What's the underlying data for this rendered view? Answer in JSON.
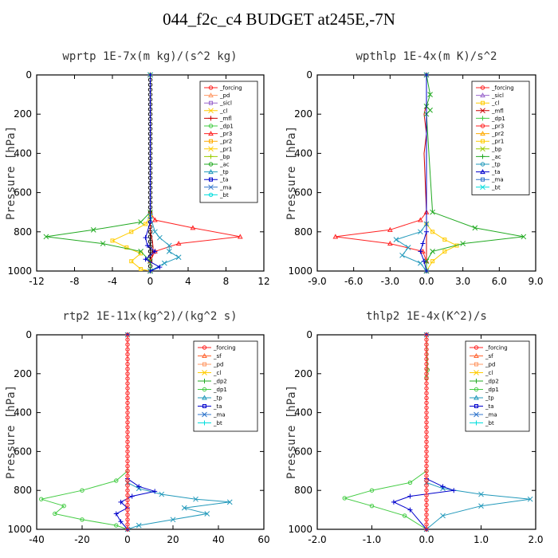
{
  "title": "044_f2c_c4  BUDGET at245E,-7N",
  "chart_data": [
    {
      "type": "line",
      "title": "wprtp  1E-7x(m kg)/(s^2 kg)",
      "ylabel": "Pressure [hPa]",
      "xlim": [
        -12,
        12
      ],
      "ylim": [
        1000,
        0
      ],
      "xticks": [
        "-12",
        "-8",
        "-4",
        "0",
        "4",
        "8",
        "12"
      ],
      "xtick_values": [
        -12,
        -8,
        -4,
        0,
        4,
        8,
        12
      ],
      "yticks": [
        "0",
        "200",
        "400",
        "600",
        "800",
        "1000"
      ],
      "ytick_values": [
        0,
        200,
        400,
        600,
        800,
        1000
      ],
      "legend_position": "top-right",
      "legend": [
        "_forcing",
        "_pd",
        "_sicl",
        "_cl",
        "_mfl",
        "_dp1",
        "_pr3",
        "_pr2",
        "_pr1",
        "_bp",
        "_ac",
        "_tp",
        "_ta",
        "_ma",
        "_bt"
      ],
      "series": [
        {
          "name": "_forcing",
          "color": "#000000",
          "marker": "circle",
          "x": [
            0,
            0,
            0,
            0,
            0,
            0,
            0,
            0,
            0,
            0,
            0,
            0,
            0,
            0,
            0,
            0,
            0,
            0,
            0,
            0,
            0,
            0,
            0,
            0,
            0,
            0,
            0,
            0,
            0,
            0,
            0,
            0,
            0,
            0,
            0,
            0,
            0,
            0,
            0,
            0,
            0
          ],
          "y": [
            0,
            25,
            50,
            75,
            100,
            125,
            150,
            175,
            200,
            225,
            250,
            275,
            300,
            325,
            350,
            375,
            400,
            425,
            450,
            475,
            500,
            525,
            550,
            575,
            600,
            625,
            650,
            675,
            700,
            725,
            750,
            775,
            800,
            825,
            850,
            875,
            900,
            925,
            950,
            975,
            1000
          ]
        },
        {
          "name": "_mfl",
          "color": "#cc0000",
          "marker": "none",
          "x": [
            0,
            0,
            0,
            0,
            0.2,
            0.3,
            0.2,
            0,
            0
          ],
          "y": [
            0,
            600,
            760,
            800,
            840,
            880,
            920,
            960,
            1000
          ]
        },
        {
          "name": "_dp1",
          "color": "#ff2222",
          "marker": "tri",
          "x": [
            0,
            0,
            0.5,
            4.5,
            9.5,
            3,
            0.5,
            0,
            0
          ],
          "y": [
            0,
            700,
            740,
            780,
            825,
            860,
            900,
            950,
            1000
          ]
        },
        {
          "name": "_pr1",
          "color": "#ffcc00",
          "marker": "square",
          "x": [
            0,
            0,
            -0.5,
            -2,
            -4,
            -2.5,
            -1,
            -2,
            -1,
            0
          ],
          "y": [
            0,
            720,
            760,
            800,
            845,
            880,
            910,
            950,
            990,
            1000
          ]
        },
        {
          "name": "_ac",
          "color": "#22aa22",
          "marker": "x",
          "x": [
            0,
            0,
            -1,
            -6,
            -11,
            -5,
            -1,
            0,
            0
          ],
          "y": [
            0,
            700,
            750,
            790,
            825,
            860,
            900,
            950,
            1000
          ]
        },
        {
          "name": "_tp",
          "color": "#2299bb",
          "marker": "x",
          "x": [
            0,
            0,
            0.5,
            1,
            2,
            2,
            3,
            1.5,
            0
          ],
          "y": [
            0,
            720,
            800,
            830,
            870,
            900,
            930,
            960,
            1000
          ]
        },
        {
          "name": "_ta",
          "color": "#0000cc",
          "marker": "plus",
          "x": [
            0,
            0,
            -0.5,
            -0.3,
            0.5,
            -0.5,
            1,
            0
          ],
          "y": [
            0,
            750,
            830,
            870,
            900,
            940,
            980,
            1000
          ]
        }
      ]
    },
    {
      "type": "line",
      "title": "wpthlp  1E-4x(m K)/s^2",
      "ylabel": "Pressure [hPa]",
      "xlim": [
        -9,
        9
      ],
      "ylim": [
        1000,
        0
      ],
      "xticks": [
        "-9.0",
        "-6.0",
        "-3.0",
        "0.0",
        "3.0",
        "6.0",
        "9.0"
      ],
      "xtick_values": [
        -9,
        -6,
        -3,
        0,
        3,
        6,
        9
      ],
      "yticks": [
        "0",
        "200",
        "400",
        "600",
        "800",
        "1000"
      ],
      "ytick_values": [
        0,
        200,
        400,
        600,
        800,
        1000
      ],
      "legend_position": "top-right",
      "legend": [
        "_forcing",
        "_sicl",
        "_cl",
        "_mfl",
        "_dp1",
        "_pr3",
        "_pr2",
        "_pr1",
        "_bp",
        "_ac",
        "_tp",
        "_ta",
        "_ma",
        "_bt"
      ],
      "series": [
        {
          "name": "_forcing",
          "color": "#cc88cc",
          "marker": "none",
          "x": [
            0,
            0
          ],
          "y": [
            0,
            1000
          ]
        },
        {
          "name": "_mfl",
          "color": "#cc0000",
          "marker": "none",
          "x": [
            0,
            0,
            -0.2,
            0,
            -0.2,
            0,
            0
          ],
          "y": [
            0,
            150,
            200,
            300,
            400,
            700,
            1000
          ]
        },
        {
          "name": "_dp1",
          "color": "#ff2222",
          "marker": "tri",
          "x": [
            0,
            0,
            -0.5,
            -3,
            -7.5,
            -3,
            -0.3,
            0,
            0
          ],
          "y": [
            0,
            700,
            740,
            790,
            825,
            860,
            900,
            950,
            1000
          ]
        },
        {
          "name": "_pr1",
          "color": "#ffcc00",
          "marker": "square",
          "x": [
            0,
            0,
            0.5,
            1.5,
            2.5,
            1.5,
            0.5,
            0
          ],
          "y": [
            0,
            760,
            800,
            840,
            870,
            900,
            950,
            1000
          ]
        },
        {
          "name": "_ac",
          "color": "#22aa22",
          "marker": "x",
          "x": [
            0,
            0.3,
            0,
            0.3,
            0,
            0.5,
            4,
            8,
            3,
            0.5,
            0,
            0
          ],
          "y": [
            0,
            100,
            160,
            180,
            200,
            700,
            780,
            825,
            860,
            900,
            950,
            1000
          ]
        },
        {
          "name": "_tp",
          "color": "#2299bb",
          "marker": "x",
          "x": [
            0,
            0,
            -0.5,
            -2.5,
            -1.5,
            -2,
            -0.5,
            0
          ],
          "y": [
            0,
            760,
            800,
            840,
            880,
            920,
            960,
            1000
          ]
        },
        {
          "name": "_ta",
          "color": "#0000cc",
          "marker": "plus",
          "x": [
            0,
            0,
            -0.3,
            -0.5,
            -0.2,
            0
          ],
          "y": [
            0,
            800,
            860,
            900,
            950,
            1000
          ]
        }
      ]
    },
    {
      "type": "line",
      "title": "rtp2  1E-11x(kg^2)/(kg^2 s)",
      "ylabel": "Pressure [hPa]",
      "xlim": [
        -40,
        60
      ],
      "ylim": [
        1000,
        0
      ],
      "xticks": [
        "-40",
        "-20",
        "0",
        "20",
        "40",
        "60"
      ],
      "xtick_values": [
        -40,
        -20,
        0,
        20,
        40,
        60
      ],
      "yticks": [
        "0",
        "200",
        "400",
        "600",
        "800",
        "1000"
      ],
      "ytick_values": [
        0,
        200,
        400,
        600,
        800,
        1000
      ],
      "legend_position": "top-right",
      "legend": [
        "_forcing",
        "_sf",
        "_pd",
        "_cl",
        "_dp2",
        "_dp1",
        "_tp",
        "_ta",
        "_ma",
        "_bt"
      ],
      "series": [
        {
          "name": "_dp1",
          "color": "#44cc44",
          "marker": "circle",
          "x": [
            0,
            0,
            -5,
            -20,
            -38,
            -28,
            -32,
            -20,
            -5,
            0
          ],
          "y": [
            0,
            700,
            750,
            800,
            845,
            880,
            920,
            950,
            980,
            1000
          ]
        },
        {
          "name": "_tp",
          "color": "#2299bb",
          "marker": "x",
          "x": [
            0,
            0,
            5,
            15,
            30,
            45,
            25,
            35,
            20,
            5,
            0
          ],
          "y": [
            0,
            760,
            790,
            820,
            845,
            860,
            890,
            920,
            950,
            980,
            1000
          ]
        },
        {
          "name": "_ta",
          "color": "#0000cc",
          "marker": "plus",
          "x": [
            0,
            0,
            5,
            12,
            2,
            -3,
            0,
            -5,
            -3,
            0
          ],
          "y": [
            0,
            740,
            780,
            805,
            830,
            860,
            890,
            920,
            960,
            1000
          ]
        },
        {
          "name": "_forcing",
          "color": "#ff2222",
          "marker": "circle",
          "x": [
            0,
            0,
            0,
            0,
            0,
            0,
            0,
            0,
            0,
            0,
            0,
            0,
            0,
            0,
            0,
            0,
            0,
            0,
            0,
            0,
            0,
            0,
            0,
            0,
            0,
            0,
            0,
            0,
            0,
            0,
            0,
            0,
            0,
            0,
            0,
            0,
            0,
            0,
            0,
            0,
            0
          ],
          "y": [
            0,
            25,
            50,
            75,
            100,
            125,
            150,
            175,
            200,
            225,
            250,
            275,
            300,
            325,
            350,
            375,
            400,
            425,
            450,
            475,
            500,
            525,
            550,
            575,
            600,
            625,
            650,
            675,
            700,
            725,
            750,
            775,
            800,
            825,
            850,
            875,
            900,
            925,
            950,
            975,
            1000
          ]
        }
      ]
    },
    {
      "type": "line",
      "title": "thlp2  1E-4x(K^2)/s",
      "ylabel": "Pressure [hPa]",
      "xlim": [
        -2,
        2
      ],
      "ylim": [
        1000,
        0
      ],
      "xticks": [
        "-2.0",
        "-1.0",
        "0.0",
        "1.0",
        "2.0"
      ],
      "xtick_values": [
        -2,
        -1,
        0,
        1,
        2
      ],
      "yticks": [
        "0",
        "200",
        "400",
        "600",
        "800",
        "1000"
      ],
      "ytick_values": [
        0,
        200,
        400,
        600,
        800,
        1000
      ],
      "legend_position": "top-right",
      "legend": [
        "_forcing",
        "_sf",
        "_pd",
        "_cl",
        "_dp2",
        "_dp1",
        "_tp",
        "_ta",
        "_ma",
        "_bt"
      ],
      "series": [
        {
          "name": "_dp1",
          "color": "#44cc44",
          "marker": "circle",
          "x": [
            0,
            0.02,
            0,
            0,
            -0.3,
            -1,
            -1.5,
            -1,
            -0.4,
            0
          ],
          "y": [
            0,
            180,
            220,
            700,
            760,
            800,
            840,
            880,
            930,
            1000
          ]
        },
        {
          "name": "_tp",
          "color": "#2299bb",
          "marker": "x",
          "x": [
            0,
            0,
            0.3,
            1,
            1.9,
            1,
            0.3,
            0
          ],
          "y": [
            0,
            760,
            790,
            820,
            845,
            880,
            930,
            1000
          ]
        },
        {
          "name": "_ta",
          "color": "#0000cc",
          "marker": "plus",
          "x": [
            0,
            0,
            0.3,
            0.5,
            -0.3,
            -0.6,
            -0.3,
            0
          ],
          "y": [
            0,
            740,
            780,
            800,
            830,
            860,
            900,
            1000
          ]
        },
        {
          "name": "_forcing",
          "color": "#ff2222",
          "marker": "circle",
          "x": [
            0,
            0,
            0,
            0,
            0,
            0,
            0,
            0,
            0,
            0,
            0,
            0,
            0,
            0,
            0,
            0,
            0,
            0,
            0,
            0,
            0,
            0,
            0,
            0,
            0,
            0,
            0,
            0,
            0,
            0,
            0,
            0,
            0,
            0,
            0,
            0,
            0,
            0,
            0,
            0,
            0
          ],
          "y": [
            0,
            25,
            50,
            75,
            100,
            125,
            150,
            175,
            200,
            225,
            250,
            275,
            300,
            325,
            350,
            375,
            400,
            425,
            450,
            475,
            500,
            525,
            550,
            575,
            600,
            625,
            650,
            675,
            700,
            725,
            750,
            775,
            800,
            825,
            850,
            875,
            900,
            925,
            950,
            975,
            1000
          ]
        }
      ]
    }
  ],
  "legend_colors": {
    "_forcing": "#ff2222",
    "_pd": "#ff9966",
    "_sicl": "#9966cc",
    "_cl": "#ffcc00",
    "_mfl": "#cc0000",
    "_dp1": "#44cc44",
    "_dp2": "#22aa22",
    "_sf": "#ff6633",
    "_pr3": "#ff2222",
    "_pr2": "#ffaa00",
    "_pr1": "#ffcc00",
    "_bp": "#99cc00",
    "_ac": "#22aa22",
    "_tp": "#2299bb",
    "_ta": "#0000cc",
    "_ma": "#3377cc",
    "_bt": "#00dddd"
  }
}
